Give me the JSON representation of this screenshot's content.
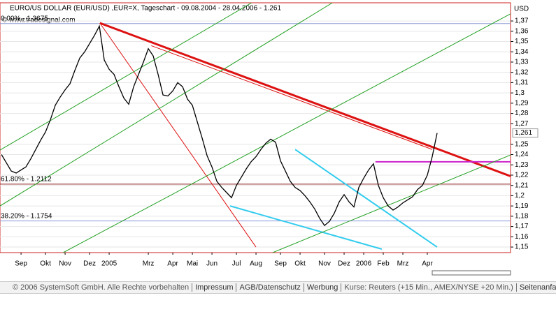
{
  "chart_data": {
    "type": "price-line",
    "title": "EURO/US DOLLAR (EUR/USD) ,EUR=X, Tageschart - 09.08.2004 - 28.04.2006 - 1.261",
    "watermark": "© www.tradesignal.com",
    "y_axis_label": "USD",
    "categories": [
      null,
      null,
      null,
      null,
      "Sep",
      null,
      null,
      null,
      null,
      "Okt",
      null,
      null,
      null,
      "Nov",
      null,
      null,
      null,
      null,
      "Dez",
      null,
      null,
      null,
      "2005",
      null,
      null,
      null,
      null,
      null,
      null,
      null,
      "Mrz",
      null,
      null,
      null,
      null,
      "Apr",
      null,
      null,
      null,
      "Mai",
      null,
      null,
      null,
      "Jun",
      null,
      null,
      null,
      null,
      "Jul",
      null,
      null,
      null,
      "Aug",
      null,
      null,
      null,
      null,
      "Sep",
      null,
      null,
      null,
      "Okt",
      null,
      null,
      null,
      null,
      "Nov",
      null,
      null,
      null,
      "Dez",
      null,
      null,
      null,
      "2006",
      null,
      null,
      null,
      "Feb",
      null,
      null,
      null,
      "Mrz",
      null,
      null,
      null,
      null,
      "Apr",
      null,
      null
    ],
    "series": [
      {
        "name": "EUR/USD",
        "color": "#000000",
        "values": [
          1.24,
          1.232,
          1.224,
          1.222,
          1.225,
          1.228,
          1.236,
          1.245,
          1.254,
          1.262,
          1.274,
          1.288,
          1.296,
          1.303,
          1.309,
          1.322,
          1.334,
          1.34,
          1.348,
          1.356,
          1.365,
          1.332,
          1.323,
          1.318,
          1.306,
          1.295,
          1.289,
          1.306,
          1.318,
          1.33,
          1.343,
          1.336,
          1.318,
          1.298,
          1.297,
          1.302,
          1.31,
          1.306,
          1.294,
          1.288,
          1.272,
          1.256,
          1.239,
          1.228,
          1.214,
          1.208,
          1.203,
          1.198,
          1.21,
          1.218,
          1.226,
          1.233,
          1.238,
          1.245,
          1.251,
          1.255,
          1.252,
          1.234,
          1.224,
          1.214,
          1.208,
          1.205,
          1.2,
          1.194,
          1.187,
          1.178,
          1.171,
          1.175,
          1.183,
          1.194,
          1.201,
          1.194,
          1.189,
          1.208,
          1.217,
          1.225,
          1.231,
          1.21,
          1.198,
          1.19,
          1.186,
          1.189,
          1.193,
          1.196,
          1.199,
          1.206,
          1.21,
          1.22,
          1.238,
          1.261
        ]
      }
    ],
    "xlim": [
      -0.3,
      104
    ],
    "ylim": [
      1.1446,
      1.3877
    ],
    "yticks": [
      {
        "value": 1.15,
        "label": "1,15"
      },
      {
        "value": 1.16,
        "label": "1,16"
      },
      {
        "value": 1.17,
        "label": "1,17"
      },
      {
        "value": 1.18,
        "label": "1,18"
      },
      {
        "value": 1.19,
        "label": "1,19"
      },
      {
        "value": 1.2,
        "label": "1,2"
      },
      {
        "value": 1.21,
        "label": "1,21"
      },
      {
        "value": 1.22,
        "label": "1,22"
      },
      {
        "value": 1.23,
        "label": "1,23"
      },
      {
        "value": 1.24,
        "label": "1,24"
      },
      {
        "value": 1.25,
        "label": "1,25"
      },
      {
        "value": 1.27,
        "label": "1,27"
      },
      {
        "value": 1.28,
        "label": "1,28"
      },
      {
        "value": 1.29,
        "label": "1,29"
      },
      {
        "value": 1.3,
        "label": "1,3"
      },
      {
        "value": 1.31,
        "label": "1,31"
      },
      {
        "value": 1.32,
        "label": "1,32"
      },
      {
        "value": 1.33,
        "label": "1,33"
      },
      {
        "value": 1.34,
        "label": "1,34"
      },
      {
        "value": 1.35,
        "label": "1,35"
      },
      {
        "value": 1.36,
        "label": "1,36"
      },
      {
        "value": 1.37,
        "label": "1,37"
      }
    ],
    "last_price": {
      "value": 1.261,
      "label": "1,261"
    },
    "grid": true,
    "levels": [
      {
        "value": 1.3675,
        "label": "0.00% - 1.3675",
        "color": "#8a9ad8"
      },
      {
        "value": 1.2112,
        "label": "61.80% - 1.2112",
        "color": "#8b1a1a"
      },
      {
        "value": 1.1754,
        "label": "38.20% - 1.1754",
        "color": "#8a9ad8"
      }
    ],
    "trendlines": [
      {
        "start": [
          20.1,
          1.368
        ],
        "end": [
          104,
          1.219
        ],
        "color": "#dd1111",
        "width": 3
      },
      {
        "start": [
          20.1,
          1.368
        ],
        "end": [
          52,
          1.15
        ],
        "color": "#dd1111",
        "width": 1
      },
      {
        "start": [
          30.6,
          1.346
        ],
        "end": [
          88,
          1.245
        ],
        "color": "#dd1111",
        "width": 1
      },
      {
        "start": [
          60,
          1.245
        ],
        "end": [
          89,
          1.15
        ],
        "color": "#33ccee",
        "width": 2
      },
      {
        "start": [
          46.7,
          1.19
        ],
        "end": [
          77.7,
          1.148
        ],
        "color": "#33ccee",
        "width": 2
      },
      {
        "start": [
          76.4,
          1.233
        ],
        "end": [
          104,
          1.233
        ],
        "color": "#cc22cc",
        "width": 2
      },
      {
        "start": [
          -0.3,
          1.19
        ],
        "end": [
          67.6,
          1.3877
        ],
        "color": "#22a022",
        "width": 1
      },
      {
        "start": [
          -0.3,
          1.2444
        ],
        "end": [
          51.1,
          1.3877
        ],
        "color": "#22a022",
        "width": 1
      },
      {
        "start": [
          12.6,
          1.1446
        ],
        "end": [
          104,
          1.377
        ],
        "color": "#22a022",
        "width": 1
      },
      {
        "start": [
          55.4,
          1.1446
        ],
        "end": [
          104,
          1.2396
        ],
        "color": "#22a022",
        "width": 1
      }
    ]
  },
  "footer": {
    "copyright": "© 2006 SystemSoft GmbH. Alle Rechte vorbehalten",
    "links": [
      "Impressum",
      "AGB/Datenschutz",
      "Werbung"
    ],
    "quote_note": "Kurse: Reuters (+15 Min., AMEX/NYSE +20 Min.)",
    "top_link": "Seitenanfang"
  }
}
